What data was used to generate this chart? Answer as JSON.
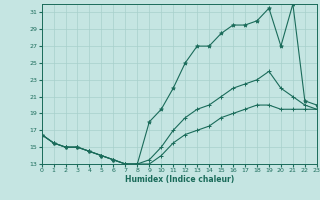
{
  "xlabel": "Humidex (Indice chaleur)",
  "bg_color": "#c5e5e2",
  "grid_color": "#a8d0cc",
  "line_color": "#1a6b5a",
  "spine_color": "#1a6b5a",
  "xmin": 0,
  "xmax": 23,
  "ymin": 13,
  "ymax": 32,
  "yticks": [
    13,
    15,
    17,
    19,
    21,
    23,
    25,
    27,
    29,
    31
  ],
  "xticks": [
    0,
    1,
    2,
    3,
    4,
    5,
    6,
    7,
    8,
    9,
    10,
    11,
    12,
    13,
    14,
    15,
    16,
    17,
    18,
    19,
    20,
    21,
    22,
    23
  ],
  "line1_x": [
    0,
    1,
    2,
    3,
    4,
    5,
    6,
    7,
    8,
    9,
    10,
    11,
    12,
    13,
    14,
    15,
    16,
    17,
    18,
    19,
    20,
    21,
    22,
    23
  ],
  "line1_y": [
    16.5,
    15.5,
    15,
    15,
    14.5,
    14,
    13.5,
    13,
    13,
    18,
    19.5,
    22,
    25,
    27,
    27,
    28.5,
    29.5,
    29.5,
    30,
    31.5,
    27,
    32,
    20.5,
    20
  ],
  "line2_x": [
    0,
    1,
    2,
    3,
    4,
    5,
    6,
    7,
    8,
    9,
    10,
    11,
    12,
    13,
    14,
    15,
    16,
    17,
    18,
    19,
    20,
    21,
    22,
    23
  ],
  "line2_y": [
    16.5,
    15.5,
    15,
    15,
    14.5,
    14,
    13.5,
    13,
    13,
    13.5,
    15,
    17,
    18.5,
    19.5,
    20,
    21,
    22,
    22.5,
    23,
    24,
    22,
    21,
    20,
    19.5
  ],
  "line3_x": [
    0,
    1,
    2,
    3,
    4,
    5,
    6,
    7,
    8,
    9,
    10,
    11,
    12,
    13,
    14,
    15,
    16,
    17,
    18,
    19,
    20,
    21,
    22,
    23
  ],
  "line3_y": [
    16.5,
    15.5,
    15,
    15,
    14.5,
    14,
    13.5,
    13,
    13,
    13,
    14,
    15.5,
    16.5,
    17,
    17.5,
    18.5,
    19,
    19.5,
    20,
    20,
    19.5,
    19.5,
    19.5,
    19.5
  ],
  "xlabel_fontsize": 5.5,
  "tick_fontsize": 4.5,
  "lw": 0.8,
  "ms_star": 3.0,
  "ms_plus": 3.0
}
